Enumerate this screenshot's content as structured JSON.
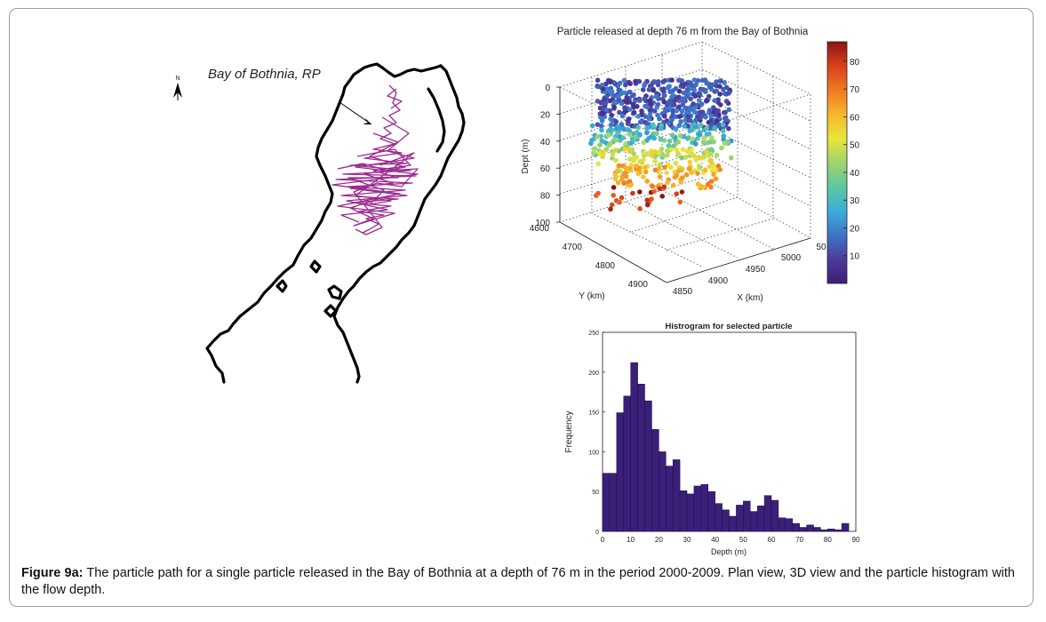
{
  "map": {
    "label": "Bay of Bothnia, RP",
    "north_label": "N"
  },
  "plot3d": {
    "title": "Particle released at depth 76 m from the Bay of Bothnia",
    "zlabel": "Dept (m)",
    "ylabel": "Y (km)",
    "xlabel": "X (km)",
    "z_ticks": [
      "0",
      "20",
      "40",
      "60",
      "80",
      "100"
    ],
    "y_ticks": [
      "4600",
      "4700",
      "4800",
      "4900"
    ],
    "x_ticks": [
      "4850",
      "4900",
      "4950",
      "5000",
      "50"
    ],
    "colorbar_ticks": [
      "80",
      "70",
      "60",
      "50",
      "40",
      "30",
      "20",
      "10"
    ],
    "colorbar_range": [
      0,
      87
    ],
    "colorbar_colors": [
      "#3b1d77",
      "#4e3b9c",
      "#3f74c7",
      "#3aaed8",
      "#5ec7a2",
      "#9fd46b",
      "#e8e63a",
      "#f6b62c",
      "#ef7a22",
      "#d9401c",
      "#8a1612"
    ]
  },
  "chart_data": {
    "type": "bar",
    "title": "Histrogram for selected particle",
    "xlabel": "Depth (m)",
    "ylabel": "Frequency",
    "xlim": [
      0,
      90
    ],
    "ylim": [
      0,
      250
    ],
    "x_ticks": [
      "0",
      "10",
      "20",
      "30",
      "40",
      "50",
      "60",
      "70",
      "80",
      "90"
    ],
    "y_ticks": [
      "0",
      "50",
      "100",
      "150",
      "200",
      "250"
    ],
    "bin_width": 2.5,
    "bin_starts": [
      0,
      2.5,
      5,
      7.5,
      10,
      12.5,
      15,
      17.5,
      20,
      22.5,
      25,
      27.5,
      30,
      32.5,
      35,
      37.5,
      40,
      42.5,
      45,
      47.5,
      50,
      52.5,
      55,
      57.5,
      60,
      62.5,
      65,
      67.5,
      70,
      72.5,
      75,
      77.5,
      80,
      82.5,
      85
    ],
    "values": [
      73,
      73,
      149,
      170,
      212,
      185,
      164,
      128,
      100,
      82,
      90,
      51,
      47,
      57,
      59,
      50,
      35,
      27,
      19,
      33,
      38,
      25,
      32,
      45,
      39,
      17,
      16,
      10,
      5,
      8,
      5,
      2,
      3,
      2,
      10
    ],
    "bar_color": "#3b1f7a"
  },
  "caption": {
    "label": "Figure 9a:",
    "text": " The particle path for a single particle released in the Bay of Bothnia at a depth of 76 m in the period 2000-2009. Plan view, 3D view and the particle histogram with the flow depth."
  }
}
